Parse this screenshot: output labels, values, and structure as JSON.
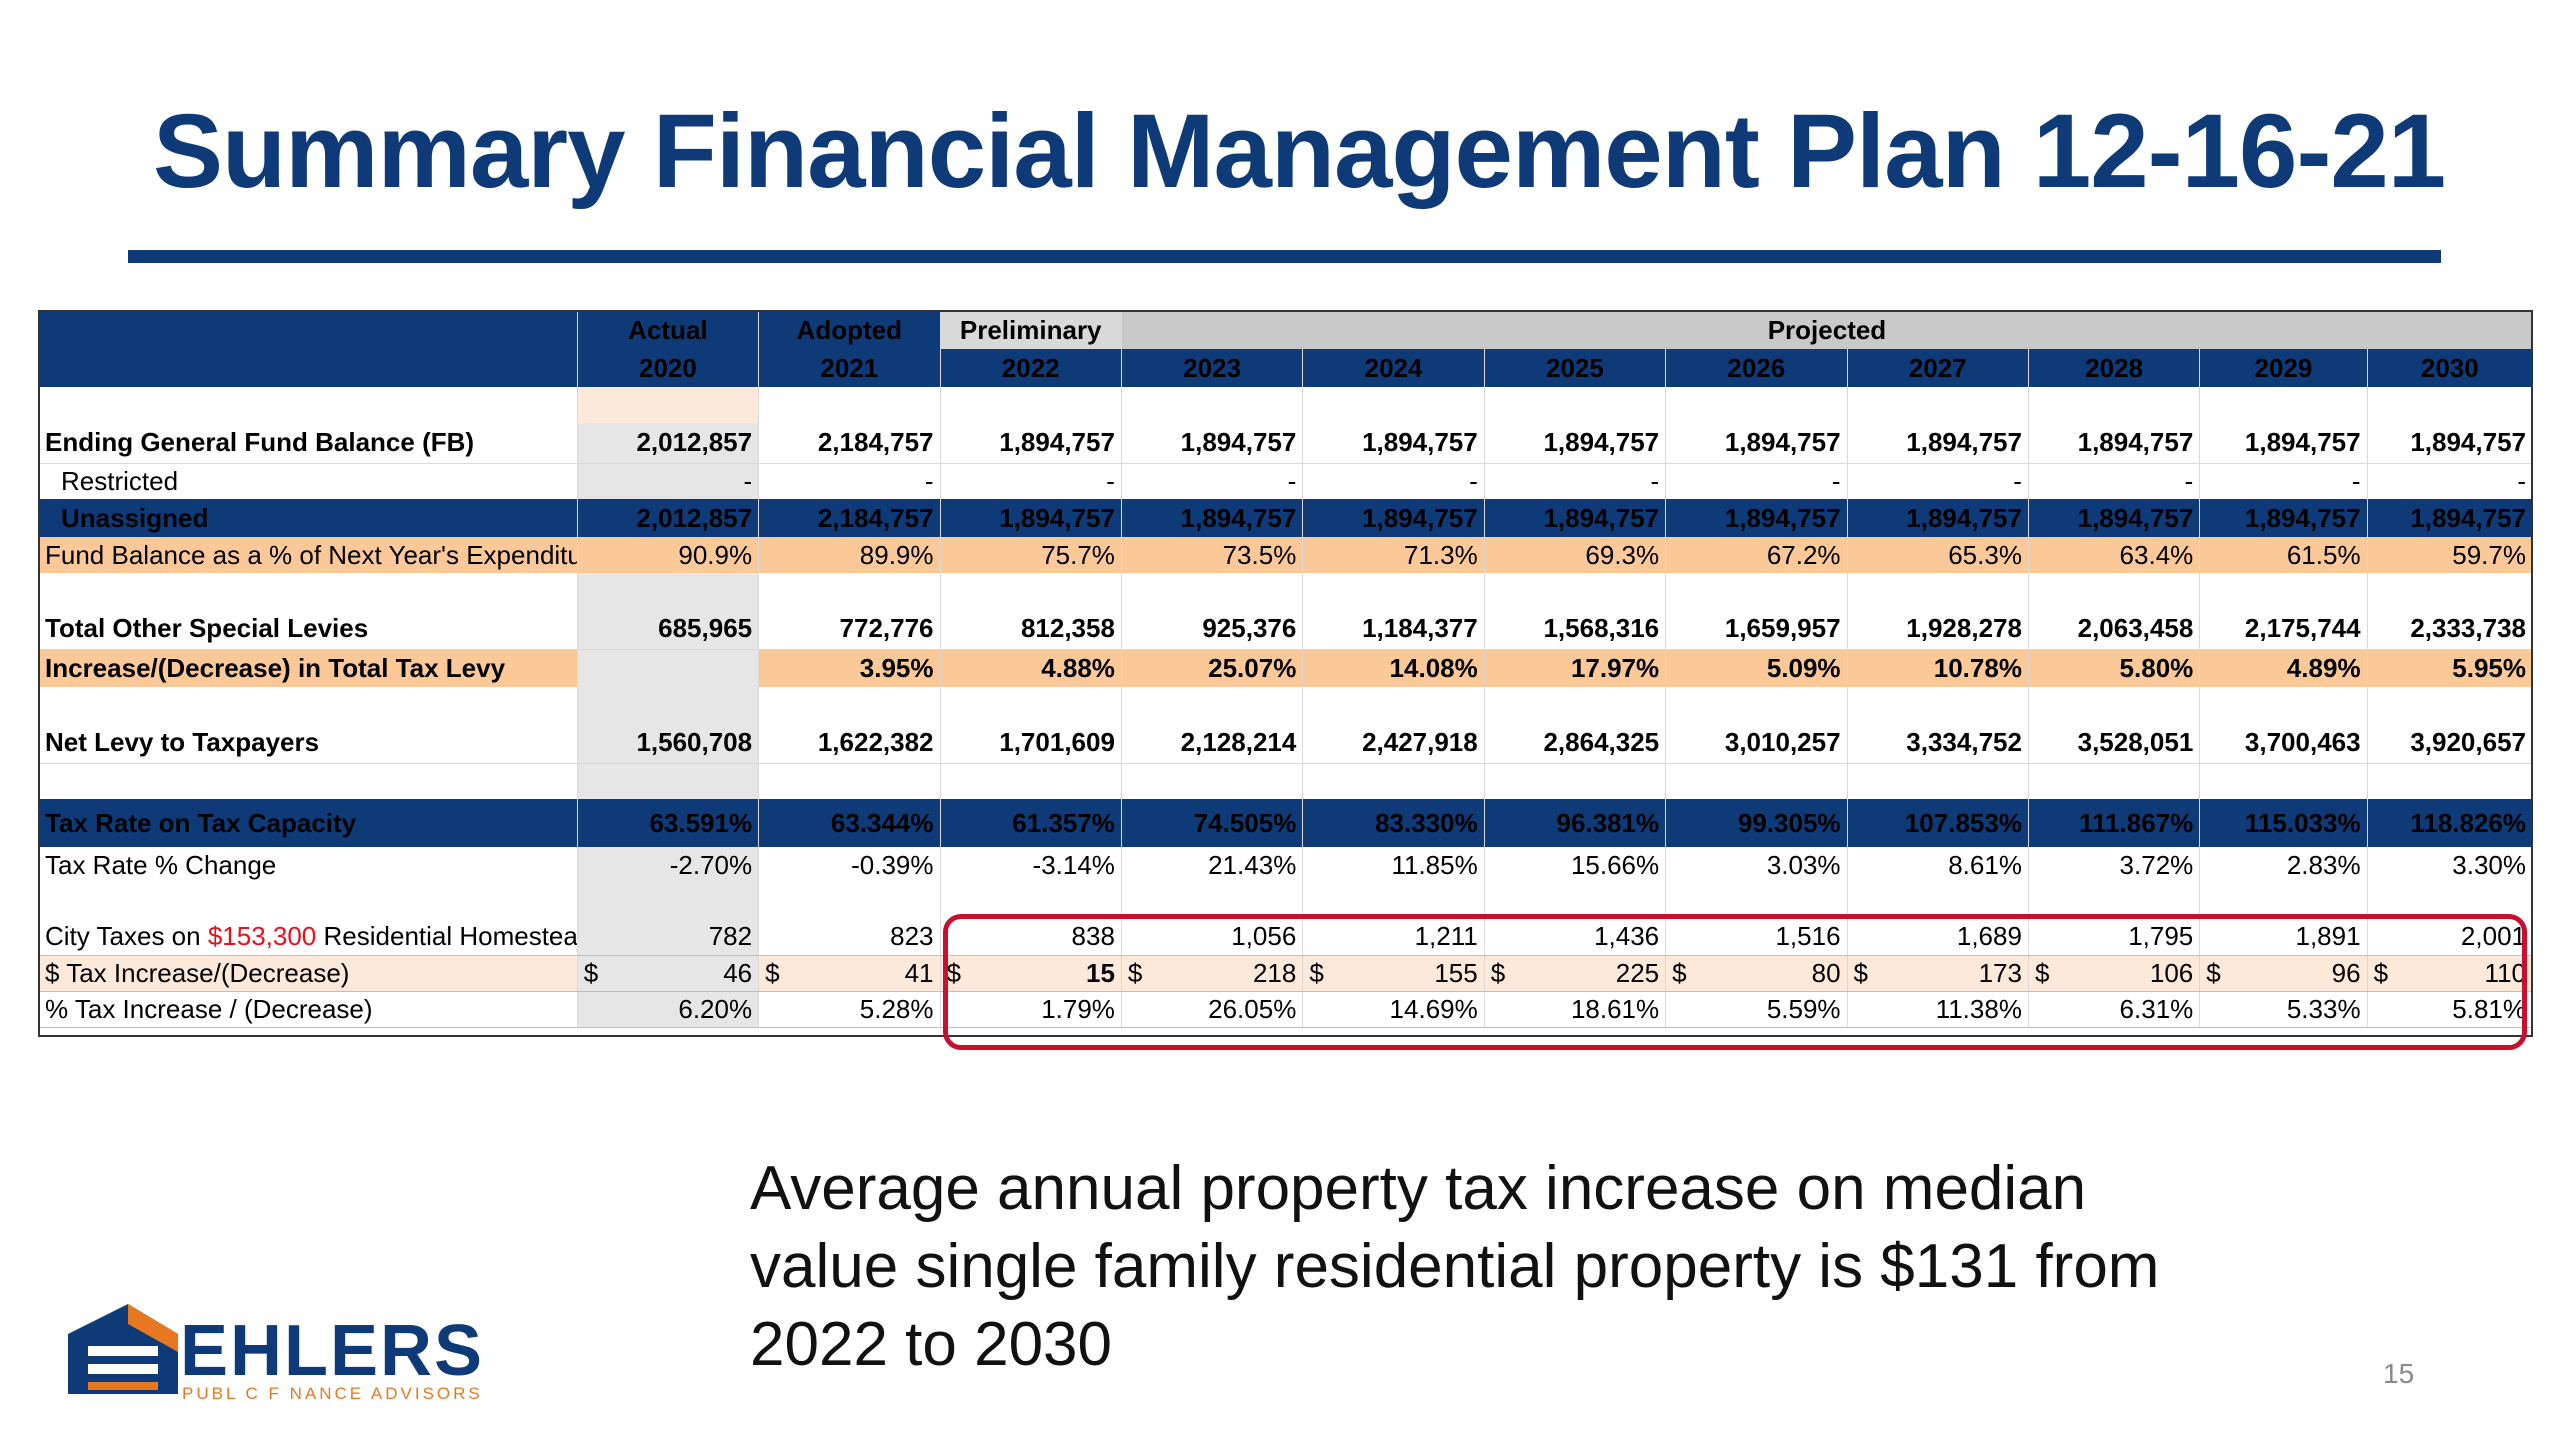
{
  "title": "Summary Financial Management Plan 12-16-21",
  "table": {
    "header_groups": {
      "actual": "Actual",
      "adopted": "Adopted",
      "preliminary": "Preliminary",
      "projected": "Projected"
    },
    "years": [
      "2020",
      "2021",
      "2022",
      "2023",
      "2024",
      "2025",
      "2026",
      "2027",
      "2028",
      "2029",
      "2030"
    ],
    "rows": {
      "ending_fb": {
        "label": "Ending General Fund Balance (FB)",
        "values": [
          "2,012,857",
          "2,184,757",
          "1,894,757",
          "1,894,757",
          "1,894,757",
          "1,894,757",
          "1,894,757",
          "1,894,757",
          "1,894,757",
          "1,894,757",
          "1,894,757"
        ]
      },
      "restricted": {
        "label": "Restricted",
        "values": [
          "-",
          "-",
          "-",
          "-",
          "-",
          "-",
          "-",
          "-",
          "-",
          "-",
          "-"
        ]
      },
      "unassigned": {
        "label": "Unassigned",
        "values": [
          "2,012,857",
          "2,184,757",
          "1,894,757",
          "1,894,757",
          "1,894,757",
          "1,894,757",
          "1,894,757",
          "1,894,757",
          "1,894,757",
          "1,894,757",
          "1,894,757"
        ]
      },
      "fb_pct": {
        "label": "Fund Balance as a % of Next Year's Expenditures",
        "values": [
          "90.9%",
          "89.9%",
          "75.7%",
          "73.5%",
          "71.3%",
          "69.3%",
          "67.2%",
          "65.3%",
          "63.4%",
          "61.5%",
          "59.7%"
        ]
      },
      "other_levies": {
        "label": "Total Other Special Levies",
        "values": [
          "685,965",
          "772,776",
          "812,358",
          "925,376",
          "1,184,377",
          "1,568,316",
          "1,659,957",
          "1,928,278",
          "2,063,458",
          "2,175,744",
          "2,333,738"
        ]
      },
      "levy_change": {
        "label": "Increase/(Decrease) in Total Tax Levy",
        "values": [
          "",
          "3.95%",
          "4.88%",
          "25.07%",
          "14.08%",
          "17.97%",
          "5.09%",
          "10.78%",
          "5.80%",
          "4.89%",
          "5.95%"
        ]
      },
      "net_levy": {
        "label": "Net Levy to Taxpayers",
        "values": [
          "1,560,708",
          "1,622,382",
          "1,701,609",
          "2,128,214",
          "2,427,918",
          "2,864,325",
          "3,010,257",
          "3,334,752",
          "3,528,051",
          "3,700,463",
          "3,920,657"
        ]
      },
      "tax_rate": {
        "label": "Tax Rate on Tax Capacity",
        "values": [
          "63.591%",
          "63.344%",
          "61.357%",
          "74.505%",
          "83.330%",
          "96.381%",
          "99.305%",
          "107.853%",
          "111.867%",
          "115.033%",
          "118.826%"
        ]
      },
      "rate_change": {
        "label": "Tax Rate % Change",
        "values": [
          "-2.70%",
          "-0.39%",
          "-3.14%",
          "21.43%",
          "11.85%",
          "15.66%",
          "3.03%",
          "8.61%",
          "3.72%",
          "2.83%",
          "3.30%"
        ]
      },
      "city_taxes": {
        "label_pre": "City Taxes on ",
        "label_value": "$153,300",
        "label_post": " Residential Homestead",
        "values": [
          "782",
          "823",
          "838",
          "1,056",
          "1,211",
          "1,436",
          "1,516",
          "1,689",
          "1,795",
          "1,891",
          "2,001"
        ]
      },
      "dollar_change": {
        "label": "$ Tax Increase/(Decrease)",
        "currency": "$",
        "values": [
          "46",
          "41",
          "15",
          "218",
          "155",
          "225",
          "80",
          "173",
          "106",
          "96",
          "110"
        ]
      },
      "pct_change": {
        "label": "% Tax Increase / (Decrease)",
        "values": [
          "6.20%",
          "5.28%",
          "1.79%",
          "26.05%",
          "14.69%",
          "18.61%",
          "5.59%",
          "11.38%",
          "6.31%",
          "5.33%",
          "5.81%"
        ]
      }
    }
  },
  "note": "Average annual property tax increase on median value single family residential property is $131 from 2022 to 2030",
  "logo": {
    "name": "EHLERS",
    "tagline": "PUBL C F NANCE ADVISORS"
  },
  "page_number": "15",
  "colors": {
    "brand_navy": "#0e3a78",
    "highlight_orange": "#fbc898",
    "accent_red": "#c8102e"
  }
}
